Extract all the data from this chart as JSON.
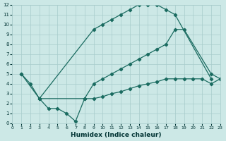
{
  "xlabel": "Humidex (Indice chaleur)",
  "bg_color": "#cce8e6",
  "grid_color": "#a8cccb",
  "line_color": "#1a6b60",
  "xlim": [
    0,
    23
  ],
  "ylim": [
    0,
    12
  ],
  "xticks": [
    0,
    1,
    2,
    3,
    4,
    5,
    6,
    7,
    8,
    9,
    10,
    11,
    12,
    13,
    14,
    15,
    16,
    17,
    18,
    19,
    20,
    21,
    22,
    23
  ],
  "yticks": [
    0,
    1,
    2,
    3,
    4,
    5,
    6,
    7,
    8,
    9,
    10,
    11,
    12
  ],
  "curve1_x": [
    1,
    2,
    3,
    9,
    10,
    11,
    12,
    13,
    14,
    15,
    16,
    17,
    18,
    22
  ],
  "curve1_y": [
    5,
    4,
    2.5,
    9.5,
    10,
    10.5,
    11,
    11.5,
    12,
    12,
    12,
    11.5,
    11,
    4.5
  ],
  "curve2_x": [
    1,
    3,
    8,
    9,
    10,
    11,
    12,
    13,
    14,
    15,
    16,
    17,
    18,
    19,
    22,
    23
  ],
  "curve2_y": [
    5,
    2.5,
    2.5,
    4,
    4.5,
    5,
    5.5,
    6,
    6.5,
    7,
    7.5,
    8,
    9.5,
    9.5,
    5,
    4.5
  ],
  "curve3_x": [
    3,
    4,
    5,
    6,
    7,
    8,
    9,
    10,
    11,
    12,
    13,
    14,
    15,
    16,
    17,
    18,
    19,
    20,
    21,
    22,
    23
  ],
  "curve3_y": [
    2.5,
    1.5,
    1.5,
    1,
    0.2,
    2.5,
    2.5,
    2.7,
    3,
    3.2,
    3.5,
    3.8,
    4,
    4.2,
    4.5,
    4.5,
    4.5,
    4.5,
    4.5,
    4,
    4.5
  ]
}
